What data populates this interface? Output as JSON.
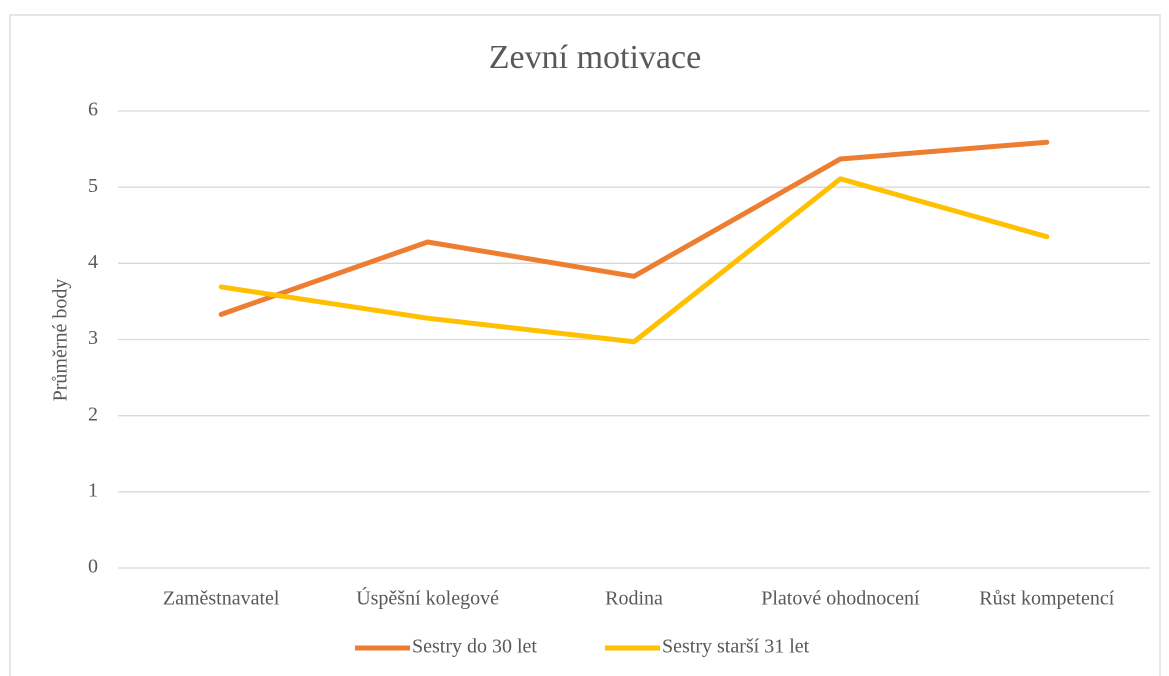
{
  "chart_data": {
    "type": "line",
    "title": "Zevní motivace",
    "y_label": "Průměrné body",
    "categories": [
      "Zaměstnavatel",
      "Úspěšní kolegové",
      "Rodina",
      "Platové ohodnocení",
      "Růst kompetencí"
    ],
    "series": [
      {
        "name": "Sestry do 30 let",
        "color": "#ed7d31",
        "values": [
          3.33,
          4.28,
          3.83,
          5.37,
          5.59
        ]
      },
      {
        "name": "Sestry starší 31 let",
        "color": "#ffc000",
        "values": [
          3.69,
          3.28,
          2.97,
          5.11,
          4.35
        ]
      }
    ],
    "ylim": [
      0,
      6
    ],
    "yticks": [
      0,
      1,
      2,
      3,
      4,
      5,
      6
    ],
    "grid": true,
    "legend": "bottom"
  }
}
